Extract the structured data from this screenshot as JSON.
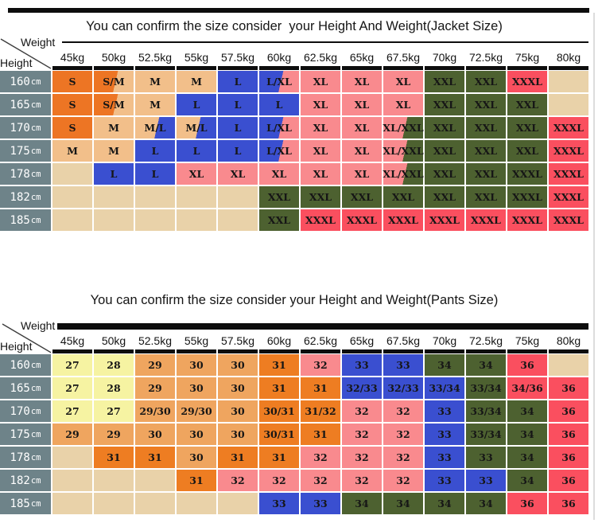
{
  "axis": {
    "weight_label": "Weight",
    "height_label": "Height"
  },
  "palette": {
    "row_header": "#6e8389",
    "orange": "#ed7524",
    "tan": "#f2bf8a",
    "beige": "#e9d2a9",
    "blue": "#3a4fd0",
    "pink": "#f98a8e",
    "green": "#4d6130",
    "red": "#fa4f5f",
    "yellow": "#f6f3a2",
    "morange": "#efa55f",
    "dorange": "#ee7d22",
    "bar_black": "#0d0d0d",
    "edge_gray": "#dcdcdc"
  },
  "tables": [
    {
      "title": "You can confirm the size consider  your Height And Weight(Jacket Size)",
      "columns": [
        "45kg",
        "50kg",
        "52.5kg",
        "55kg",
        "57.5kg",
        "60kg",
        "62.5kg",
        "65kg",
        "67.5kg",
        "70kg",
        "72.5kg",
        "75kg",
        "80kg"
      ],
      "unit": "cm",
      "rows": [
        {
          "height": "160",
          "cells": [
            [
              "S",
              "orange"
            ],
            [
              "S/M",
              "orange|tan"
            ],
            [
              "M",
              "tan"
            ],
            [
              "M",
              "tan"
            ],
            [
              "L",
              "blue"
            ],
            [
              "L/XL",
              "blue|pink"
            ],
            [
              "XL",
              "pink"
            ],
            [
              "XL",
              "pink"
            ],
            [
              "XL",
              "pink"
            ],
            [
              "XXL",
              "green"
            ],
            [
              "XXL",
              "green"
            ],
            [
              "XXXL",
              "red"
            ],
            [
              "",
              "beige"
            ]
          ]
        },
        {
          "height": "165",
          "cells": [
            [
              "S",
              "orange"
            ],
            [
              "S/M",
              "orange|tan"
            ],
            [
              "M",
              "tan"
            ],
            [
              "L",
              "blue"
            ],
            [
              "L",
              "blue"
            ],
            [
              "L",
              "blue"
            ],
            [
              "XL",
              "pink"
            ],
            [
              "XL",
              "pink"
            ],
            [
              "XL",
              "pink"
            ],
            [
              "XXL",
              "green"
            ],
            [
              "XXL",
              "green"
            ],
            [
              "XXL",
              "green"
            ],
            [
              "",
              "beige"
            ]
          ]
        },
        {
          "height": "170",
          "cells": [
            [
              "S",
              "orange"
            ],
            [
              "M",
              "tan"
            ],
            [
              "M/L",
              "tan|blue"
            ],
            [
              "M/L",
              "tan|blue"
            ],
            [
              "L",
              "blue"
            ],
            [
              "L/XL",
              "blue|pink"
            ],
            [
              "XL",
              "pink"
            ],
            [
              "XL",
              "pink"
            ],
            [
              "XL/XXL",
              "pink|green"
            ],
            [
              "XXL",
              "green"
            ],
            [
              "XXL",
              "green"
            ],
            [
              "XXL",
              "green"
            ],
            [
              "XXXL",
              "red"
            ]
          ]
        },
        {
          "height": "175",
          "cells": [
            [
              "M",
              "tan"
            ],
            [
              "M",
              "tan"
            ],
            [
              "L",
              "blue"
            ],
            [
              "L",
              "blue"
            ],
            [
              "L",
              "blue"
            ],
            [
              "L/XL",
              "blue|pink"
            ],
            [
              "XL",
              "pink"
            ],
            [
              "XL",
              "pink"
            ],
            [
              "XL/XXL",
              "pink|green"
            ],
            [
              "XXL",
              "green"
            ],
            [
              "XXL",
              "green"
            ],
            [
              "XXL",
              "green"
            ],
            [
              "XXXL",
              "red"
            ]
          ]
        },
        {
          "height": "178",
          "cells": [
            [
              "",
              "beige"
            ],
            [
              "L",
              "blue"
            ],
            [
              "L",
              "blue"
            ],
            [
              "XL",
              "pink"
            ],
            [
              "XL",
              "pink"
            ],
            [
              "XL",
              "pink"
            ],
            [
              "XL",
              "pink"
            ],
            [
              "XL",
              "pink"
            ],
            [
              "XL/XXL",
              "pink|green"
            ],
            [
              "XXL",
              "green"
            ],
            [
              "XXL",
              "green"
            ],
            [
              "XXXL",
              "green"
            ],
            [
              "XXXL",
              "red"
            ]
          ]
        },
        {
          "height": "182",
          "cells": [
            [
              "",
              "beige"
            ],
            [
              "",
              "beige"
            ],
            [
              "",
              "beige"
            ],
            [
              "",
              "beige"
            ],
            [
              "",
              "beige"
            ],
            [
              "XXL",
              "green"
            ],
            [
              "XXL",
              "green"
            ],
            [
              "XXL",
              "green"
            ],
            [
              "XXL",
              "green"
            ],
            [
              "XXL",
              "green"
            ],
            [
              "XXL",
              "green"
            ],
            [
              "XXXL",
              "green"
            ],
            [
              "XXXL",
              "red"
            ]
          ]
        },
        {
          "height": "185",
          "cells": [
            [
              "",
              "beige"
            ],
            [
              "",
              "beige"
            ],
            [
              "",
              "beige"
            ],
            [
              "",
              "beige"
            ],
            [
              "",
              "beige"
            ],
            [
              "XXL",
              "green"
            ],
            [
              "XXXL",
              "red"
            ],
            [
              "XXXL",
              "red"
            ],
            [
              "XXXL",
              "red"
            ],
            [
              "XXXL",
              "red"
            ],
            [
              "XXXL",
              "red"
            ],
            [
              "XXXL",
              "red"
            ],
            [
              "XXXL",
              "red"
            ]
          ]
        }
      ]
    },
    {
      "title": "You can confirm the size consider your Height and Weight(Pants Size)",
      "columns": [
        "45kg",
        "50kg",
        "52.5kg",
        "55kg",
        "57.5kg",
        "60kg",
        "62.5kg",
        "65kg",
        "67.5kg",
        "70kg",
        "72.5kg",
        "75kg",
        "80kg"
      ],
      "unit": "cm",
      "rows": [
        {
          "height": "160",
          "cells": [
            [
              "27",
              "yellow"
            ],
            [
              "28",
              "yellow"
            ],
            [
              "29",
              "morange"
            ],
            [
              "30",
              "morange"
            ],
            [
              "30",
              "morange"
            ],
            [
              "31",
              "dorange"
            ],
            [
              "32",
              "pink"
            ],
            [
              "33",
              "blue"
            ],
            [
              "33",
              "blue"
            ],
            [
              "34",
              "green"
            ],
            [
              "34",
              "green"
            ],
            [
              "36",
              "red"
            ],
            [
              "",
              "beige"
            ]
          ]
        },
        {
          "height": "165",
          "cells": [
            [
              "27",
              "yellow"
            ],
            [
              "28",
              "yellow"
            ],
            [
              "29",
              "morange"
            ],
            [
              "30",
              "morange"
            ],
            [
              "30",
              "morange"
            ],
            [
              "31",
              "dorange"
            ],
            [
              "31",
              "dorange"
            ],
            [
              "32/33",
              "blue"
            ],
            [
              "32/33",
              "blue"
            ],
            [
              "33/34",
              "blue"
            ],
            [
              "33/34",
              "green"
            ],
            [
              "34/36",
              "red"
            ],
            [
              "36",
              "red"
            ]
          ]
        },
        {
          "height": "170",
          "cells": [
            [
              "27",
              "yellow"
            ],
            [
              "27",
              "yellow"
            ],
            [
              "29/30",
              "morange"
            ],
            [
              "29/30",
              "morange"
            ],
            [
              "30",
              "morange"
            ],
            [
              "30/31",
              "dorange"
            ],
            [
              "31/32",
              "dorange"
            ],
            [
              "32",
              "pink"
            ],
            [
              "32",
              "pink"
            ],
            [
              "33",
              "blue"
            ],
            [
              "33/34",
              "green"
            ],
            [
              "34",
              "green"
            ],
            [
              "36",
              "red"
            ]
          ]
        },
        {
          "height": "175",
          "cells": [
            [
              "29",
              "morange"
            ],
            [
              "29",
              "morange"
            ],
            [
              "30",
              "morange"
            ],
            [
              "30",
              "morange"
            ],
            [
              "30",
              "morange"
            ],
            [
              "30/31",
              "dorange"
            ],
            [
              "31",
              "dorange"
            ],
            [
              "32",
              "pink"
            ],
            [
              "32",
              "pink"
            ],
            [
              "33",
              "blue"
            ],
            [
              "33/34",
              "green"
            ],
            [
              "34",
              "green"
            ],
            [
              "36",
              "red"
            ]
          ]
        },
        {
          "height": "178",
          "cells": [
            [
              "",
              "beige"
            ],
            [
              "31",
              "dorange"
            ],
            [
              "31",
              "dorange"
            ],
            [
              "30",
              "morange"
            ],
            [
              "31",
              "dorange"
            ],
            [
              "31",
              "dorange"
            ],
            [
              "32",
              "pink"
            ],
            [
              "32",
              "pink"
            ],
            [
              "32",
              "pink"
            ],
            [
              "33",
              "blue"
            ],
            [
              "33",
              "green"
            ],
            [
              "34",
              "green"
            ],
            [
              "36",
              "red"
            ]
          ]
        },
        {
          "height": "182",
          "cells": [
            [
              "",
              "beige"
            ],
            [
              "",
              "beige"
            ],
            [
              "",
              "beige"
            ],
            [
              "31",
              "dorange"
            ],
            [
              "32",
              "pink"
            ],
            [
              "32",
              "pink"
            ],
            [
              "32",
              "pink"
            ],
            [
              "32",
              "pink"
            ],
            [
              "32",
              "pink"
            ],
            [
              "33",
              "blue"
            ],
            [
              "33",
              "blue"
            ],
            [
              "34",
              "green"
            ],
            [
              "36",
              "red"
            ]
          ]
        },
        {
          "height": "185",
          "cells": [
            [
              "",
              "beige"
            ],
            [
              "",
              "beige"
            ],
            [
              "",
              "beige"
            ],
            [
              "",
              "beige"
            ],
            [
              "",
              "beige"
            ],
            [
              "33",
              "blue"
            ],
            [
              "33",
              "blue"
            ],
            [
              "34",
              "green"
            ],
            [
              "34",
              "green"
            ],
            [
              "34",
              "green"
            ],
            [
              "34",
              "green"
            ],
            [
              "36",
              "red"
            ],
            [
              "36",
              "red"
            ]
          ]
        }
      ]
    }
  ]
}
